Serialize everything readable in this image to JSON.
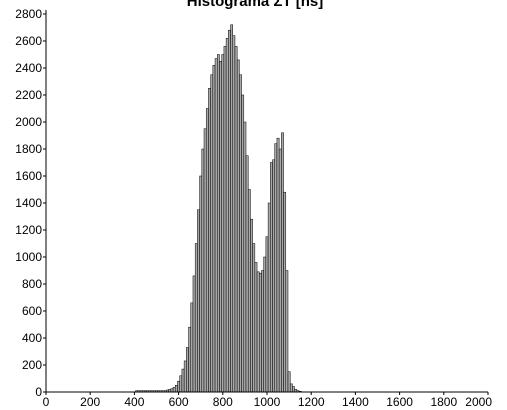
{
  "chart_data": {
    "type": "bar",
    "title": "Histograma ΣT [ns]",
    "xlabel": "",
    "ylabel": "",
    "xlim": [
      0,
      2000
    ],
    "ylim": [
      0,
      2800
    ],
    "x_ticks": [
      0,
      200,
      400,
      600,
      800,
      1000,
      1200,
      1400,
      1600,
      1800,
      2000
    ],
    "y_ticks": [
      0,
      200,
      400,
      600,
      800,
      1000,
      1200,
      1400,
      1600,
      1800,
      2000,
      2200,
      2400,
      2600,
      2800
    ],
    "grid": false,
    "legend": "none",
    "bar_color": "#a9a9a9",
    "bar_edge_color": "#000000",
    "bin_width": 10,
    "series": [
      {
        "x": [
          410,
          420,
          430,
          440,
          450,
          460,
          470,
          480,
          490,
          500,
          510,
          520,
          530,
          540,
          550,
          560,
          570,
          580,
          590,
          600,
          610,
          620,
          630,
          640,
          650,
          660,
          670,
          680,
          690,
          700,
          710,
          720,
          730,
          740,
          750,
          760,
          770,
          780,
          790,
          800,
          810,
          820,
          830,
          840,
          850,
          860,
          870,
          880,
          890,
          900,
          910,
          920,
          930,
          940,
          950,
          960,
          970,
          980,
          990,
          1000,
          1010,
          1020,
          1030,
          1040,
          1050,
          1060,
          1070,
          1080,
          1090,
          1100,
          1110,
          1120,
          1130,
          1140,
          1150
        ],
        "values": [
          10,
          10,
          10,
          10,
          10,
          10,
          10,
          10,
          10,
          10,
          10,
          10,
          10,
          10,
          15,
          20,
          25,
          35,
          50,
          80,
          120,
          170,
          230,
          330,
          480,
          660,
          860,
          1100,
          1350,
          1600,
          1800,
          1950,
          2100,
          2250,
          2350,
          2420,
          2470,
          2500,
          2450,
          2500,
          2560,
          2620,
          2680,
          2720,
          2640,
          2560,
          2460,
          2350,
          2200,
          2000,
          1750,
          1500,
          1280,
          1100,
          960,
          890,
          880,
          900,
          1000,
          1150,
          1400,
          1700,
          1720,
          1840,
          1880,
          1800,
          1920,
          1480,
          900,
          150,
          60,
          40,
          20,
          10,
          5
        ]
      }
    ]
  }
}
